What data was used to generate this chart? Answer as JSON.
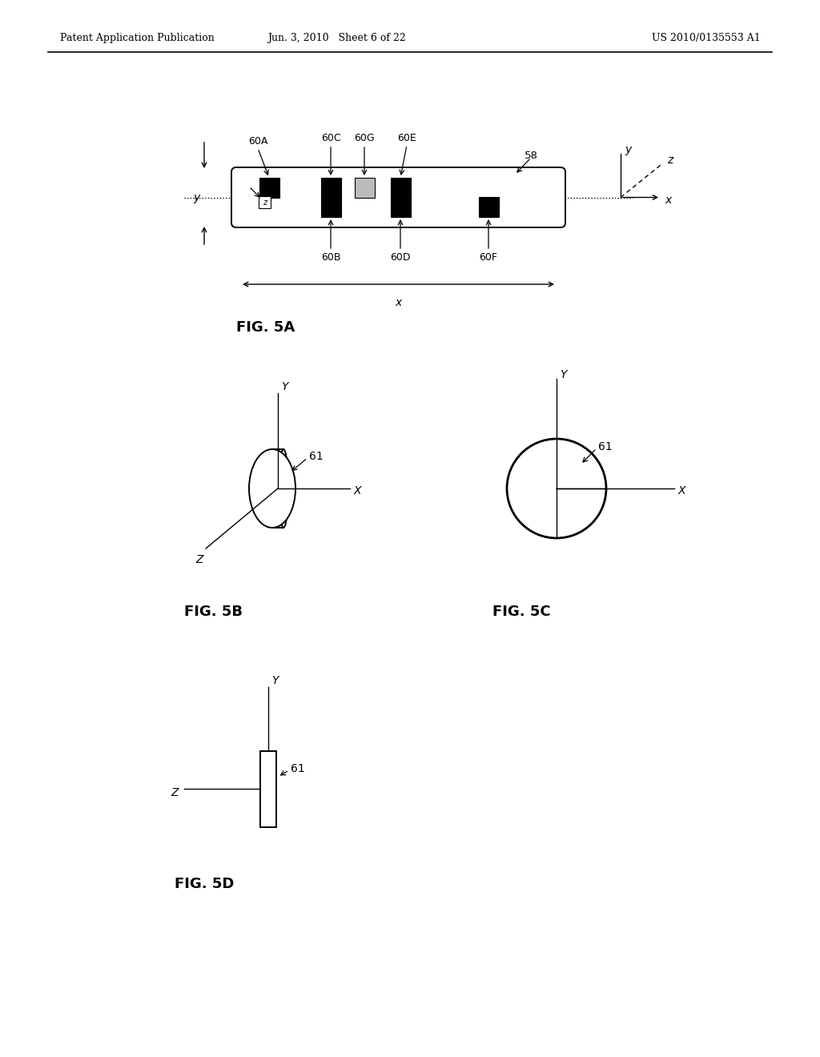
{
  "bg_color": "#ffffff",
  "header_left": "Patent Application Publication",
  "header_mid": "Jun. 3, 2010   Sheet 6 of 22",
  "header_right": "US 2010/0135553 A1",
  "fig5a_label": "FIG. 5A",
  "fig5b_label": "FIG. 5B",
  "fig5c_label": "FIG. 5C",
  "fig5d_label": "FIG. 5D"
}
